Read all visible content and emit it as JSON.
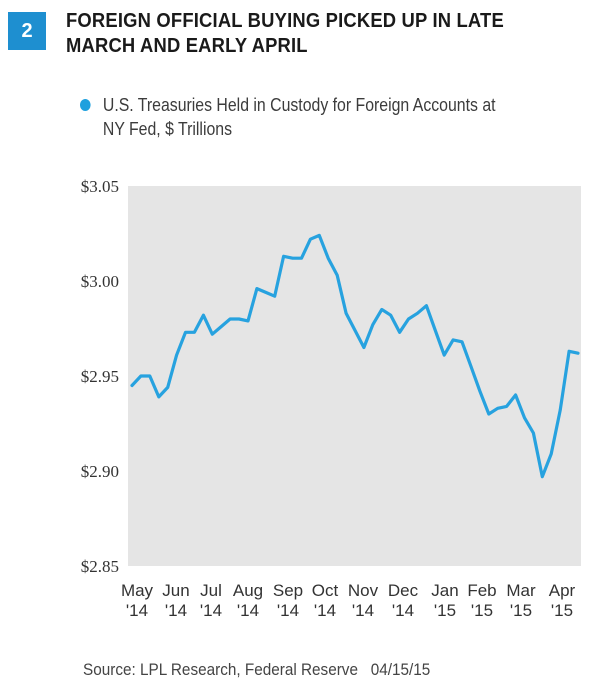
{
  "badge": "2",
  "title": "FOREIGN OFFICIAL BUYING PICKED UP IN LATE MARCH AND EARLY APRIL",
  "legend": "U.S. Treasuries Held in Custody for Foreign Accounts at NY Fed, $ Trillions",
  "source": "Source: LPL Research, Federal Reserve   04/15/15",
  "colors": {
    "line": "#27a2df",
    "plot_bg": "#e5e5e5",
    "badge": "#1e8fd0"
  },
  "chart_data": {
    "type": "line",
    "title": "FOREIGN OFFICIAL BUYING PICKED UP IN LATE MARCH AND EARLY APRIL",
    "ylim": [
      2.85,
      3.05
    ],
    "yticks": [
      2.85,
      2.9,
      2.95,
      3.0,
      3.05
    ],
    "ytick_labels": [
      "$2.85",
      "$2.90",
      "$2.95",
      "$3.00",
      "$3.05"
    ],
    "xtick_labels": [
      [
        "May",
        "'14"
      ],
      [
        "Jun",
        "'14"
      ],
      [
        "Jul",
        "'14"
      ],
      [
        "Aug",
        "'14"
      ],
      [
        "Sep",
        "'14"
      ],
      [
        "Oct",
        "'14"
      ],
      [
        "Nov",
        "'14"
      ],
      [
        "Dec",
        "'14"
      ],
      [
        "Jan",
        "'15"
      ],
      [
        "Feb",
        "'15"
      ],
      [
        "Mar",
        "'15"
      ],
      [
        "Apr",
        "'15"
      ]
    ],
    "grid": false,
    "series": [
      {
        "values": [
          2.945,
          2.95,
          2.95,
          2.939,
          2.944,
          2.961,
          2.973,
          2.973,
          2.982,
          2.972,
          2.976,
          2.98,
          2.98,
          2.979,
          2.996,
          2.994,
          2.992,
          3.013,
          3.012,
          3.012,
          3.022,
          3.024,
          3.012,
          3.003,
          2.983,
          2.974,
          2.965,
          2.977,
          2.985,
          2.982,
          2.973,
          2.98,
          2.983,
          2.987,
          2.974,
          2.961,
          2.969,
          2.968,
          2.955,
          2.942,
          2.93,
          2.933,
          2.934,
          2.94,
          2.928,
          2.92,
          2.897,
          2.909,
          2.932,
          2.963,
          2.962
        ]
      }
    ]
  }
}
